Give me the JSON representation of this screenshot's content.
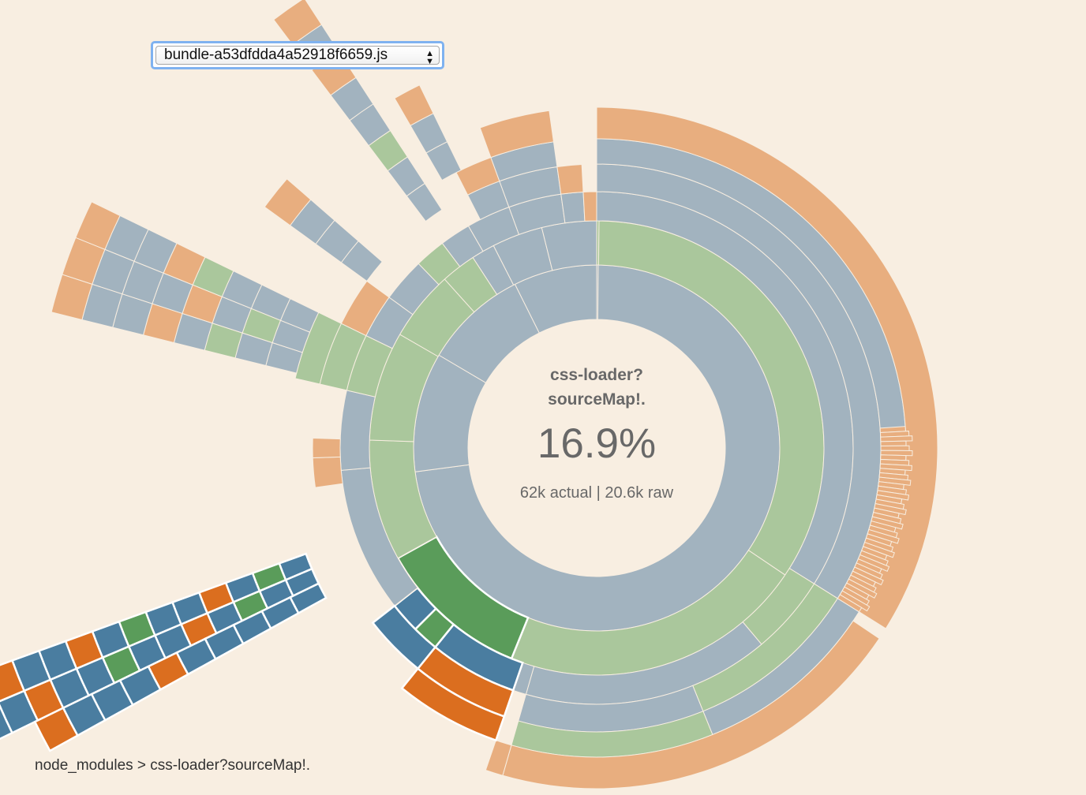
{
  "bundle_select": {
    "value": "bundle-a53dfdda4a52918f6659.js"
  },
  "center": {
    "title_line1": "css-loader?",
    "title_line2": "sourceMap!.",
    "percent": "16.9%",
    "sizes": "62k actual | 20.6k raw"
  },
  "breadcrumb": "node_modules > css-loader?sourceMap!.",
  "colors": {
    "background": "#f8eee1",
    "gray": "#a2b3bf",
    "light_green": "#aac79c",
    "light_orange": "#e8ae7f",
    "dark_green": "#5a9c5a",
    "dark_blue": "#4a7da0",
    "dark_orange": "#db6e1f"
  },
  "chart_data": {
    "type": "sunburst",
    "highlighted_path": [
      "node_modules",
      "css-loader?sourceMap!."
    ],
    "highlighted_share_percent": 16.9,
    "highlighted_actual_size": "62k",
    "highlighted_raw_size": "20.6k",
    "rings": [
      {
        "depth": 1,
        "segments": [
          {
            "start": 0,
            "end": 0.5,
            "color": "gray"
          },
          {
            "start": 0.5,
            "end": 262.5,
            "color": "gray"
          },
          {
            "start": 262.5,
            "end": 300.5,
            "color": "gray"
          },
          {
            "start": 300.5,
            "end": 333.5,
            "color": "gray"
          },
          {
            "start": 333.5,
            "end": 360,
            "color": "gray"
          }
        ]
      },
      {
        "depth": 2,
        "segments": [
          {
            "start": 0,
            "end": 0.6,
            "color": "light_green"
          },
          {
            "start": 0.6,
            "end": 124,
            "color": "light_green"
          },
          {
            "start": 124,
            "end": 202,
            "color": "light_green"
          },
          {
            "start": 202,
            "end": 241,
            "color": "dark_green",
            "highlight": true
          },
          {
            "start": 241,
            "end": 272,
            "color": "light_green"
          },
          {
            "start": 272,
            "end": 300,
            "color": "light_green"
          },
          {
            "start": 300,
            "end": 318,
            "color": "light_green"
          },
          {
            "start": 318,
            "end": 327,
            "color": "light_green"
          },
          {
            "start": 327,
            "end": 333,
            "color": "gray"
          },
          {
            "start": 333,
            "end": 346,
            "color": "gray"
          },
          {
            "start": 346,
            "end": 360,
            "color": "gray"
          }
        ]
      },
      {
        "depth": 3,
        "segments": [
          {
            "start": 0,
            "end": 122,
            "color": "gray"
          },
          {
            "start": 122,
            "end": 140,
            "color": "light_green"
          },
          {
            "start": 140,
            "end": 196,
            "color": "gray"
          },
          {
            "start": 196,
            "end": 199,
            "color": "gray"
          },
          {
            "start": 199,
            "end": 219,
            "color": "dark_blue",
            "highlight": true
          },
          {
            "start": 219,
            "end": 225,
            "color": "dark_green",
            "highlight": true
          },
          {
            "start": 225,
            "end": 232,
            "color": "dark_blue",
            "highlight": true
          },
          {
            "start": 232,
            "end": 265,
            "color": "gray"
          },
          {
            "start": 265,
            "end": 283,
            "color": "gray"
          },
          {
            "start": 283,
            "end": 296,
            "color": "light_green"
          },
          {
            "start": 296,
            "end": 306,
            "color": "gray"
          },
          {
            "start": 306,
            "end": 316,
            "color": "gray"
          },
          {
            "start": 316,
            "end": 323,
            "color": "light_green"
          },
          {
            "start": 323,
            "end": 330,
            "color": "gray"
          },
          {
            "start": 330,
            "end": 340,
            "color": "gray"
          },
          {
            "start": 340,
            "end": 352,
            "color": "gray"
          },
          {
            "start": 352,
            "end": 357,
            "color": "gray"
          },
          {
            "start": 357,
            "end": 360,
            "color": "light_orange"
          }
        ]
      }
    ]
  }
}
